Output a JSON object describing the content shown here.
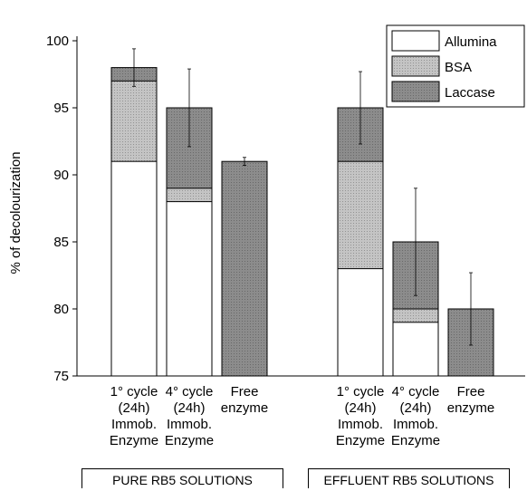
{
  "chart_data": {
    "type": "bar",
    "y_label": "% of decolourization",
    "categories": [
      "1° cycle (24h) Immob. Enzyme",
      "4° cycle (24h) Immob. Enzyme",
      "Free enzyme",
      "1° cycle (24h) Immob. Enzyme",
      "4° cycle (24h) Immob. Enzyme",
      "Free enzyme"
    ],
    "groups": [
      "PURE RB5 SOLUTIONS",
      "EFFLUENT RB5 SOLUTIONS"
    ],
    "series": [
      {
        "name": "Allumina",
        "color": "#ffffff",
        "values": [
          91,
          88,
          null,
          83,
          79,
          null
        ]
      },
      {
        "name": "BSA",
        "color": "#c4c4c4",
        "values": [
          97,
          89,
          null,
          91,
          80,
          null
        ]
      },
      {
        "name": "Laccase",
        "color": "#8c8c8c",
        "values": [
          98,
          95,
          91,
          95,
          85,
          80
        ],
        "errors": [
          1.4,
          2.9,
          0.3,
          2.7,
          4,
          2.7
        ]
      }
    ],
    "ylim": [
      75,
      100
    ],
    "yticks": [
      75,
      80,
      85,
      90,
      95,
      100
    ],
    "legend": "upper right"
  }
}
